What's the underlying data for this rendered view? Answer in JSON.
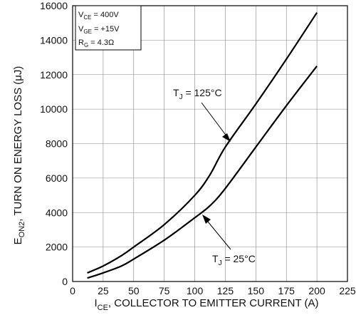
{
  "chart_data": {
    "type": "line",
    "xlabel": {
      "main": "I",
      "sub": "CE",
      "rest": ", COLLECTOR TO EMITTER CURRENT (A)"
    },
    "ylabel": {
      "main": "E",
      "sub": "ON2",
      "rest": ", TURN ON ENERGY LOSS (μJ)"
    },
    "xlim": [
      0,
      225
    ],
    "ylim": [
      0,
      16000
    ],
    "xticks": [
      0,
      25,
      50,
      75,
      100,
      125,
      150,
      175,
      200,
      225
    ],
    "yticks": [
      0,
      2000,
      4000,
      6000,
      8000,
      10000,
      12000,
      14000,
      16000
    ],
    "grid": true,
    "conditions": [
      {
        "main": "V",
        "sub": "CE",
        "rest": " = 400V"
      },
      {
        "main": "V",
        "sub": "GE",
        "rest": " = +15V"
      },
      {
        "main": "R",
        "sub": "G",
        "rest": " = 4.3Ω"
      }
    ],
    "series": [
      {
        "label": {
          "main": "T",
          "sub": "J",
          "rest": " = 125°C"
        },
        "x": [
          12,
          25,
          40,
          50,
          75,
          100,
          112.5,
          125,
          150,
          175,
          200
        ],
        "y": [
          500,
          900,
          1500,
          2000,
          3300,
          5000,
          6200,
          7800,
          10300,
          12900,
          15600
        ]
      },
      {
        "label": {
          "main": "T",
          "sub": "J",
          "rest": " = 25°C"
        },
        "x": [
          12,
          25,
          40,
          50,
          75,
          100,
          112.5,
          125,
          150,
          175,
          200
        ],
        "y": [
          200,
          500,
          900,
          1300,
          2400,
          3700,
          4400,
          5400,
          7800,
          10200,
          12500
        ]
      }
    ]
  }
}
